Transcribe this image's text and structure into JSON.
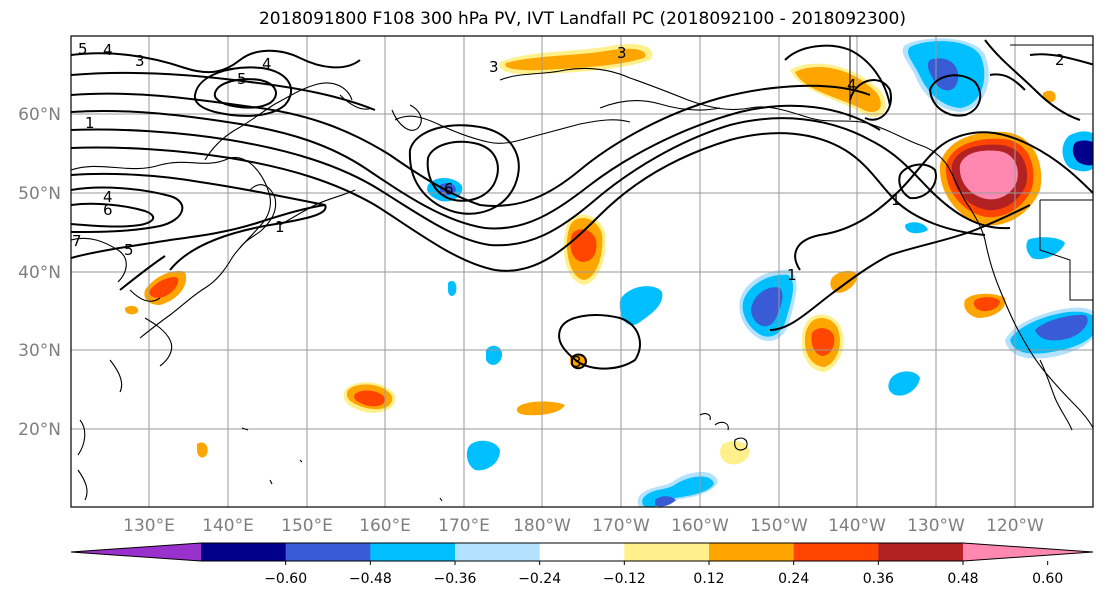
{
  "title": "2018091800 F108 300 hPa PV, IVT Landfall PC (2018092100 - 2018092300)",
  "lat_labels": [
    "60°N",
    "50°N",
    "40°N",
    "30°N",
    "20°N"
  ],
  "lon_labels": [
    "130°E",
    "140°E",
    "150°E",
    "160°E",
    "170°E",
    "180°W",
    "170°W",
    "160°W",
    "150°W",
    "140°W",
    "130°W",
    "120°W"
  ],
  "colorbar": {
    "colors": [
      "#9932cc",
      "#00008b",
      "#3a5bd6",
      "#00bfff",
      "#b2e2ff",
      "#ffffff",
      "#fff08c",
      "#ffa500",
      "#ff4500",
      "#b22222",
      "#ff88b0"
    ],
    "tick_labels": [
      "−0.60",
      "−0.48",
      "−0.36",
      "−0.24",
      "−0.12",
      "0.12",
      "0.24",
      "0.36",
      "0.48",
      "0.60"
    ]
  },
  "contour_labels": [
    "5",
    "4",
    "3",
    "5",
    "4",
    "3",
    "3",
    "1",
    "4",
    "6",
    "7",
    "5",
    "1",
    "6",
    "4",
    "2",
    "1",
    "3",
    "1"
  ]
}
